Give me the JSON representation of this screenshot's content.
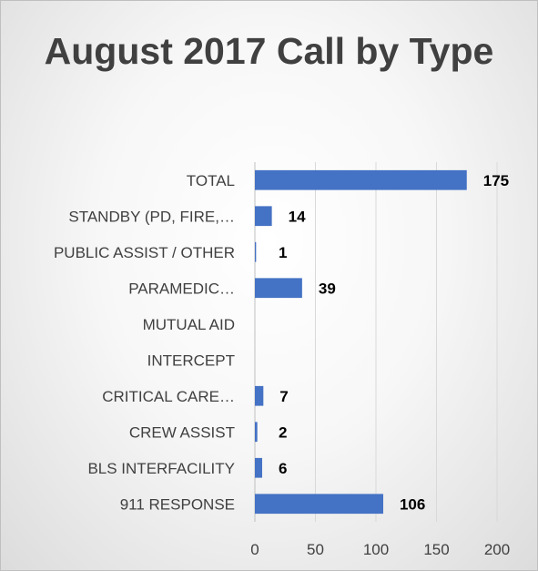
{
  "chart_data": {
    "type": "bar",
    "orientation": "horizontal",
    "title": "August 2017 Call by Type",
    "categories": [
      "TOTAL",
      "STANDBY (PD, FIRE,…",
      "PUBLIC ASSIST / OTHER",
      "PARAMEDIC…",
      "MUTUAL AID",
      "INTERCEPT",
      "CRITICAL CARE…",
      "CREW ASSIST",
      "BLS INTERFACILITY",
      "911 RESPONSE"
    ],
    "values": [
      175,
      14,
      1,
      39,
      null,
      null,
      7,
      2,
      6,
      106
    ],
    "data_labels": [
      "175",
      "14",
      "1",
      "39",
      "",
      "",
      "7",
      "2",
      "6",
      "106"
    ],
    "xlim": [
      0,
      200
    ],
    "xticks": [
      0,
      50,
      100,
      150,
      200
    ],
    "xtick_labels": [
      "0",
      "50",
      "100",
      "150",
      "200"
    ],
    "grid": "vertical",
    "legend": "none",
    "bar_color": "#4472c4"
  }
}
